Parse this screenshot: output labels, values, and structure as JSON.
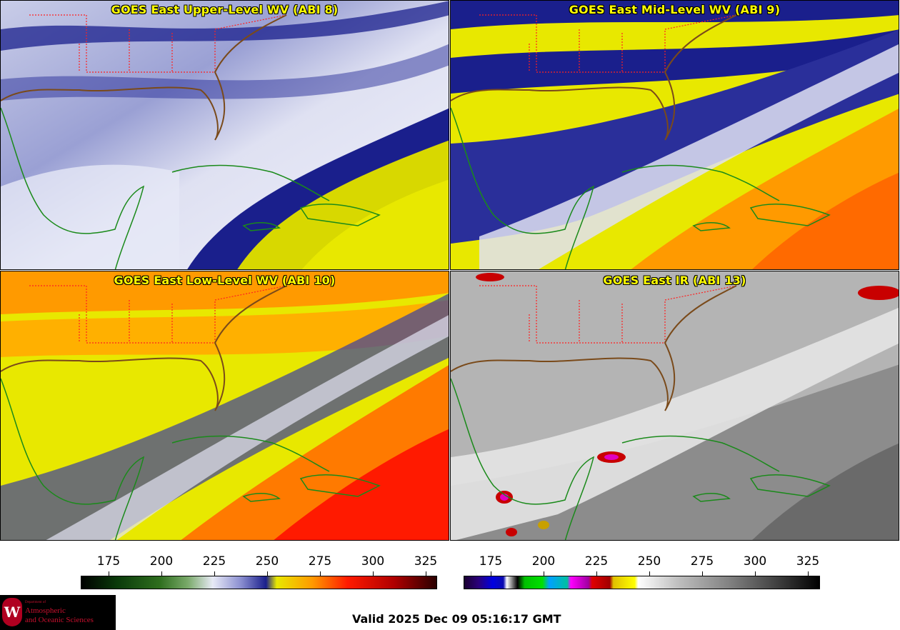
{
  "panels": [
    {
      "title": "GOES East Upper-Level WV (ABI 8)"
    },
    {
      "title": "GOES East Mid-Level WV (ABI 9)"
    },
    {
      "title": "GOES East Low-Level WV (ABI 10)"
    },
    {
      "title": "GOES East IR (ABI 13)"
    }
  ],
  "colorbars": [
    {
      "name": "wv-colorbar",
      "ticks": [
        "175",
        "200",
        "225",
        "250",
        "275",
        "300",
        "325"
      ]
    },
    {
      "name": "ir-colorbar",
      "ticks": [
        "175",
        "200",
        "225",
        "250",
        "275",
        "300",
        "325"
      ]
    }
  ],
  "logo": {
    "dept": "Department of",
    "line1": "Atmospheric",
    "line2": "and Oceanic Sciences",
    "seal": "W"
  },
  "valid_time": "Valid 2025 Dec 09 05:16:17 GMT",
  "colors": {
    "title": "#ffff00",
    "state_borders": "#ff2020",
    "coastline": "#1a8a1a",
    "us_coast": "#7a4a1a"
  }
}
